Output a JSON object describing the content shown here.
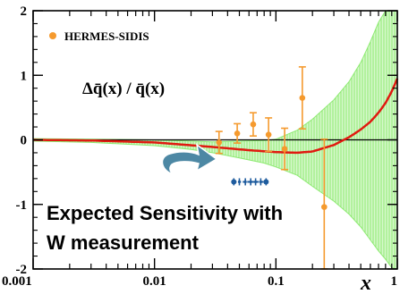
{
  "chart_data": {
    "type": "scatter",
    "x_scale": "log",
    "xlim": [
      0.001,
      1
    ],
    "ylim": [
      -2,
      2
    ],
    "x_ticks": [
      {
        "value": 0.001,
        "label": "0.001"
      },
      {
        "value": 0.01,
        "label": "0.01"
      },
      {
        "value": 0.1,
        "label": "0.1"
      },
      {
        "value": 1,
        "label": "1"
      }
    ],
    "y_ticks": [
      {
        "value": 2,
        "label": "2"
      },
      {
        "value": 1,
        "label": "1"
      },
      {
        "value": 0,
        "label": "0"
      },
      {
        "value": -1,
        "label": "-1"
      },
      {
        "value": -2,
        "label": "-2"
      }
    ],
    "xlabel": "x",
    "ratio_label": "Δq̄(x) / q̄(x)",
    "colors": {
      "data": "#f59a2e",
      "band": "#8eea72",
      "curve": "#e01a10",
      "w_points": "#1f5c9e",
      "arrow": "#4d88a4",
      "zero_line": "#000000"
    },
    "series": [
      {
        "name": "HERMES-SIDIS",
        "x": [
          0.034,
          0.048,
          0.065,
          0.087,
          0.118,
          0.165,
          0.25
        ],
        "y": [
          -0.04,
          0.1,
          0.24,
          0.08,
          -0.14,
          0.65,
          -1.04
        ],
        "err": [
          0.17,
          0.15,
          0.18,
          0.26,
          0.32,
          0.48,
          1.05
        ]
      },
      {
        "x": [
          0.045,
          0.05,
          0.056,
          0.062,
          0.068,
          0.075,
          0.083
        ],
        "y": [
          -0.65,
          -0.65,
          -0.65,
          -0.65,
          -0.65,
          -0.65,
          -0.65
        ]
      }
    ],
    "curve": {
      "x": [
        0.001,
        0.003,
        0.01,
        0.03,
        0.06,
        0.1,
        0.15,
        0.2,
        0.3,
        0.4,
        0.5,
        0.6,
        0.7,
        0.8,
        0.9,
        1
      ],
      "y": [
        0,
        -0.01,
        -0.04,
        -0.11,
        -0.16,
        -0.19,
        -0.2,
        -0.18,
        -0.08,
        0.04,
        0.16,
        0.28,
        0.42,
        0.57,
        0.75,
        0.95
      ]
    },
    "band": {
      "x": [
        0.001,
        0.003,
        0.01,
        0.02,
        0.03,
        0.05,
        0.08,
        0.1,
        0.15,
        0.2,
        0.3,
        0.4,
        0.5,
        0.6,
        0.7,
        0.8,
        0.9,
        1
      ],
      "upper": [
        0.02,
        0.01,
        0.0,
        -0.02,
        -0.03,
        -0.02,
        -0.01,
        0.01,
        0.15,
        0.32,
        0.62,
        0.9,
        1.2,
        1.52,
        1.82,
        2.0,
        2.0,
        2.0
      ],
      "lower": [
        -0.02,
        -0.04,
        -0.09,
        -0.15,
        -0.2,
        -0.28,
        -0.36,
        -0.42,
        -0.55,
        -0.72,
        -0.95,
        -1.15,
        -1.35,
        -1.55,
        -1.72,
        -1.85,
        -1.98,
        -2.0
      ]
    },
    "annotation": {
      "line1": "Expected Sensitivity with",
      "line2": "W measurement"
    }
  }
}
